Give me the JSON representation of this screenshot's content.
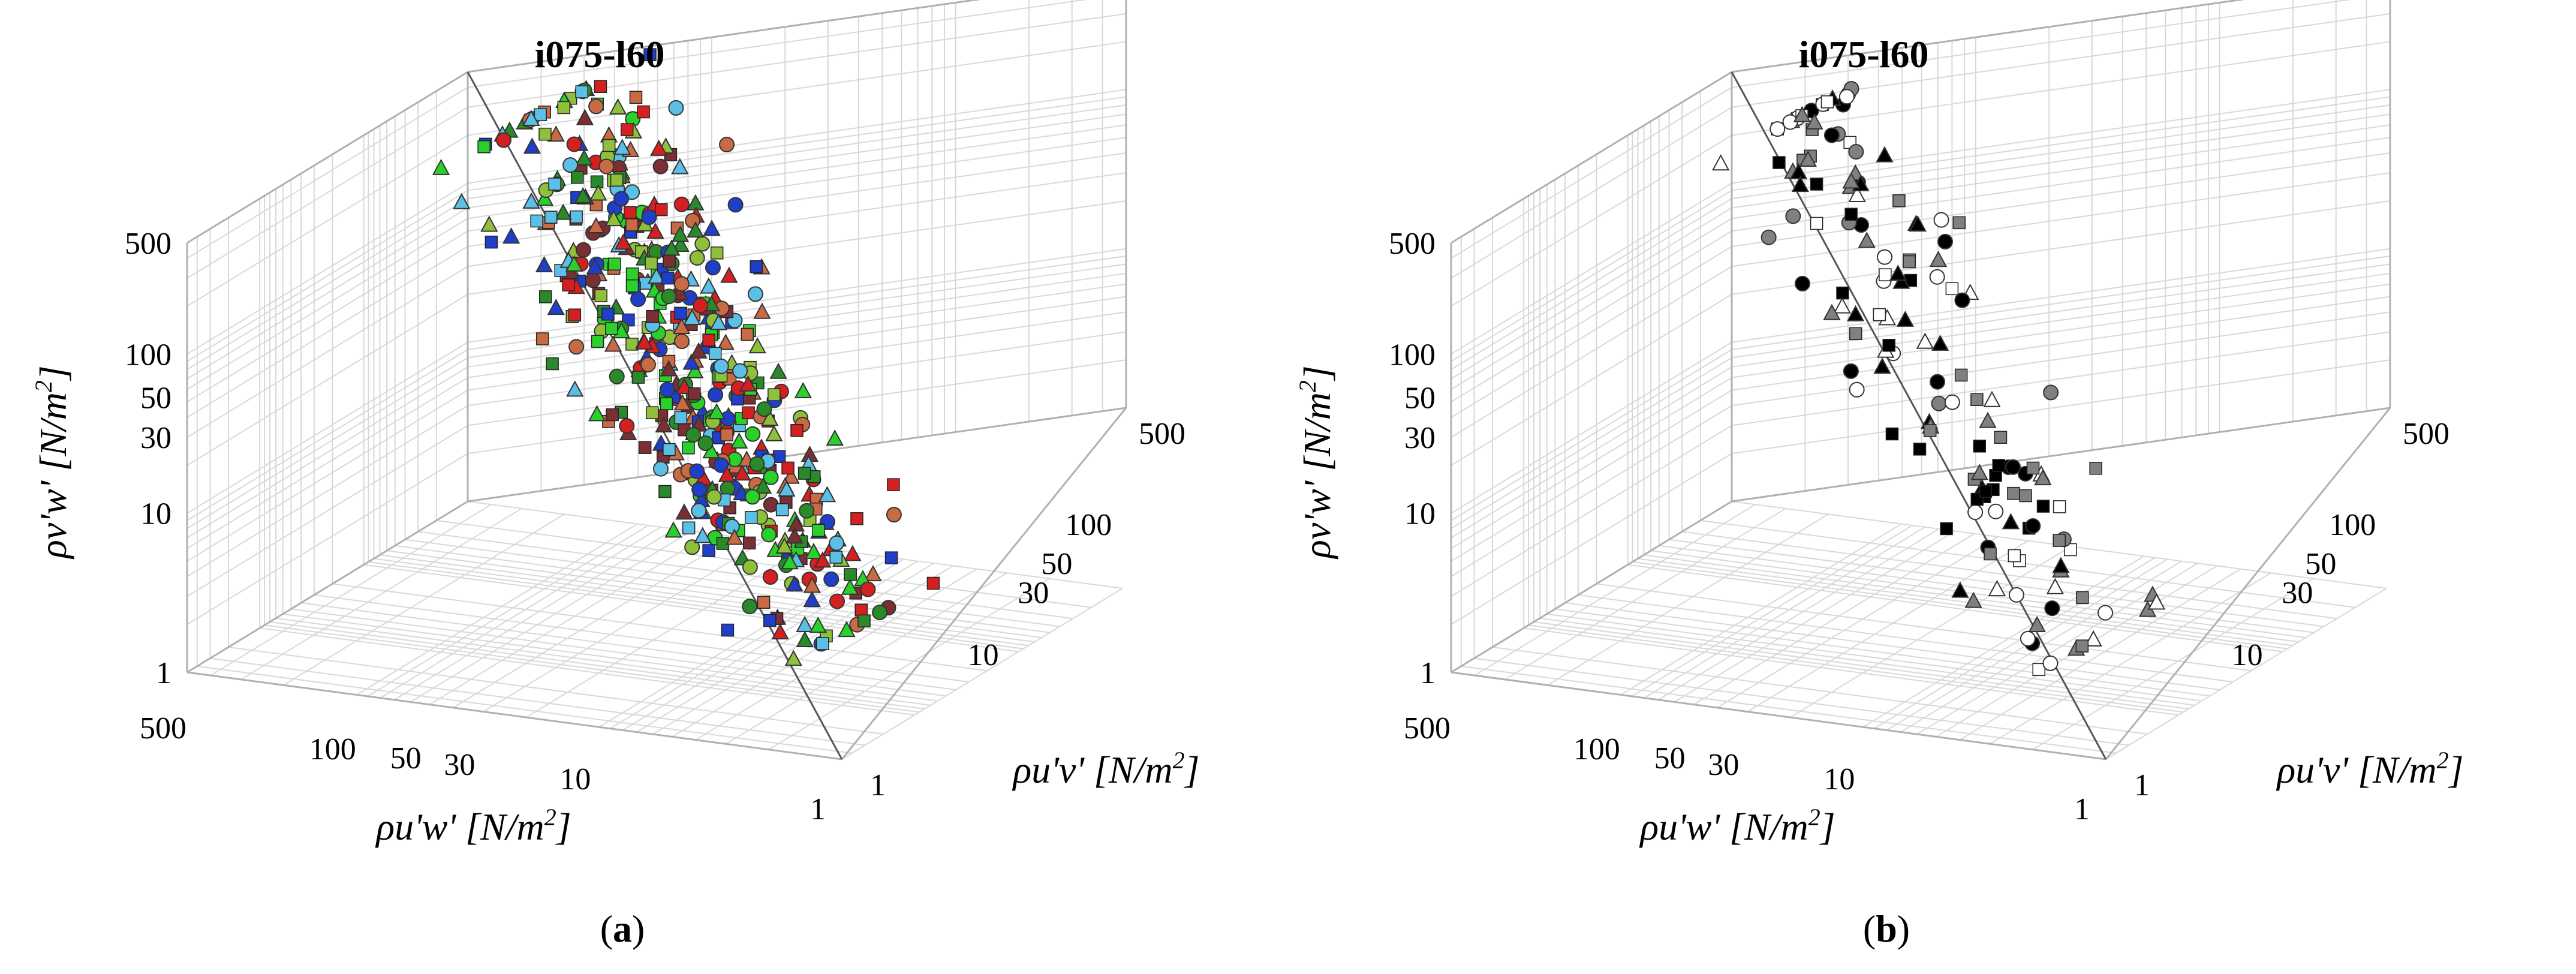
{
  "panels": [
    {
      "panel_label_open": "(",
      "panel_label_letter": "a",
      "panel_label_close": ")",
      "chart_data": {
        "type": "scatter",
        "projection": "3d",
        "title": "i075-l60",
        "xlabel": "ρu'w' [N/m2]",
        "ylabel": "ρu'v' [N/m2]",
        "zlabel": "ρv'w' [N/m2]",
        "scale": "log",
        "xlim": [
          1,
          500
        ],
        "ylim": [
          1,
          500
        ],
        "zlim": [
          1,
          500
        ],
        "xticks": [
          "500",
          "100",
          "50",
          "30",
          "10",
          "1"
        ],
        "yticks": [
          "1",
          "10",
          "30",
          "50",
          "100",
          "500"
        ],
        "zticks": [
          "1",
          "10",
          "30",
          "50",
          "100",
          "500"
        ],
        "grid": true,
        "reference_line": true,
        "cloud": {
          "seed": 11,
          "slope_offset": [
            -6,
            5
          ],
          "length": [
            150,
            255
          ],
          "spread": 75,
          "markers": [
            "circle",
            "square",
            "triangle"
          ],
          "colors": [
            "#d42020",
            "#7b2e34",
            "#2bd12b",
            "#5cc0e6",
            "#1f3fc8",
            "#8fbf3b",
            "#c86a44",
            "#2a8a2a"
          ],
          "count": 520
        }
      }
    },
    {
      "panel_label_open": "(",
      "panel_label_letter": "b",
      "panel_label_close": ")",
      "chart_data": {
        "type": "scatter",
        "projection": "3d",
        "title": "i075-l60",
        "xlabel": "ρu'w' [N/m2]",
        "ylabel": "ρu'v' [N/m2]",
        "zlabel": "ρv'w' [N/m2]",
        "scale": "log",
        "xlim": [
          1,
          500
        ],
        "ylim": [
          1,
          500
        ],
        "zlim": [
          1,
          500
        ],
        "xticks": [
          "500",
          "100",
          "50",
          "30",
          "10",
          "1"
        ],
        "yticks": [
          "1",
          "10",
          "30",
          "50",
          "100",
          "500"
        ],
        "zticks": [
          "1",
          "10",
          "30",
          "50",
          "100",
          "500"
        ],
        "grid": true,
        "reference_line": true,
        "cloud": {
          "seed": 29,
          "slope_offset": [
            -3,
            5
          ],
          "length": [
            60,
            280
          ],
          "spread": 60,
          "markers": [
            "square",
            "circle",
            "triangle"
          ],
          "colors": [
            "#000000",
            "#808080",
            "#ffffff"
          ],
          "count": 150
        }
      }
    }
  ]
}
